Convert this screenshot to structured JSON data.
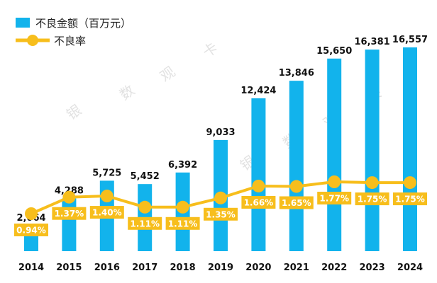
{
  "chart_data": {
    "type": "bar",
    "categories": [
      "2014",
      "2015",
      "2016",
      "2017",
      "2018",
      "2019",
      "2020",
      "2021",
      "2022",
      "2023",
      "2024"
    ],
    "series": [
      {
        "name": "不良金额（百万元）",
        "type": "bar",
        "values": [
          2064,
          4288,
          5725,
          5452,
          6392,
          9033,
          12424,
          13846,
          15650,
          16381,
          16557
        ],
        "labels": [
          "2,064",
          "4,288",
          "5,725",
          "5,452",
          "6,392",
          "9,033",
          "12,424",
          "13,846",
          "15,650",
          "16,381",
          "16,557"
        ],
        "color": "#12b3ec"
      },
      {
        "name": "不良率",
        "type": "line",
        "values": [
          0.94,
          1.37,
          1.4,
          1.11,
          1.11,
          1.35,
          1.66,
          1.65,
          1.77,
          1.75,
          1.75
        ],
        "labels": [
          "0.94%",
          "1.37%",
          "1.40%",
          "1.11%",
          "1.11%",
          "1.35%",
          "1.66%",
          "1.65%",
          "1.77%",
          "1.75%",
          "1.75%"
        ],
        "color": "#f7be1c"
      }
    ],
    "legend_position": "top-left",
    "grid": false
  },
  "watermark": [
    "银",
    "数",
    "观",
    "卡"
  ]
}
